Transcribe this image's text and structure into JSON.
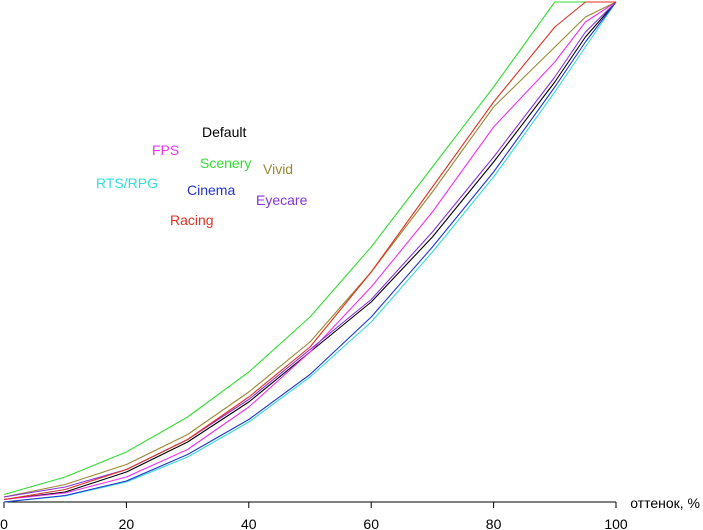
{
  "chart_data": {
    "type": "line",
    "title": "",
    "xlabel": "оттенок, %",
    "ylabel": "",
    "xlim": [
      0,
      100
    ],
    "ylim": [
      0,
      100
    ],
    "x_ticks": [
      0,
      20,
      40,
      60,
      80,
      100
    ],
    "grid": false,
    "legend_placement": "upper-left, floating labels",
    "series": [
      {
        "name": "Default",
        "color": "#000000",
        "x": [
          0,
          10,
          20,
          30,
          40,
          50,
          60,
          70,
          80,
          90,
          95,
          100
        ],
        "y": [
          0.5,
          2,
          6,
          12,
          20,
          30,
          40,
          53,
          68,
          84,
          93,
          100
        ]
      },
      {
        "name": "FPS",
        "color": "#ee33ee",
        "x": [
          0,
          10,
          20,
          30,
          40,
          50,
          60,
          70,
          80,
          90,
          95,
          100
        ],
        "y": [
          0.5,
          1.8,
          5,
          10.5,
          19,
          30,
          43,
          58,
          75,
          88,
          96,
          100
        ]
      },
      {
        "name": "Scenery",
        "color": "#33dd33",
        "x": [
          0,
          10,
          20,
          30,
          40,
          50,
          60,
          70,
          80,
          90,
          95,
          100
        ],
        "y": [
          1.5,
          5,
          10,
          17,
          26,
          37,
          51,
          67,
          83,
          100,
          100,
          100
        ]
      },
      {
        "name": "Vivid",
        "color": "#998833",
        "x": [
          0,
          10,
          20,
          30,
          40,
          50,
          60,
          70,
          80,
          90,
          95,
          100
        ],
        "y": [
          1,
          3.5,
          7.5,
          13.5,
          22,
          32,
          46,
          62,
          79,
          91,
          97,
          100
        ]
      },
      {
        "name": "RTS/RPG",
        "color": "#33dddd",
        "x": [
          0,
          10,
          20,
          30,
          40,
          50,
          60,
          70,
          80,
          90,
          95,
          100
        ],
        "y": [
          0,
          1.2,
          4,
          9,
          16,
          25,
          36,
          50,
          65,
          82,
          91,
          100
        ]
      },
      {
        "name": "Cinema",
        "color": "#2233cc",
        "x": [
          0,
          10,
          20,
          30,
          40,
          50,
          60,
          70,
          80,
          90,
          95,
          100
        ],
        "y": [
          0,
          1.3,
          4.2,
          9.5,
          16.5,
          25.5,
          37,
          51,
          66,
          83,
          92,
          100
        ]
      },
      {
        "name": "Eyecare",
        "color": "#8833dd",
        "x": [
          0,
          10,
          20,
          30,
          40,
          50,
          60,
          70,
          80,
          90,
          95,
          100
        ],
        "y": [
          1,
          3,
          6.5,
          12.5,
          20.5,
          30.5,
          40.5,
          54,
          69,
          85,
          94,
          100
        ]
      },
      {
        "name": "Racing",
        "color": "#dd3322",
        "x": [
          0,
          10,
          20,
          30,
          40,
          50,
          60,
          70,
          80,
          90,
          95,
          100
        ],
        "y": [
          0.5,
          2.5,
          6.5,
          12.5,
          21,
          31,
          46,
          63,
          80,
          95,
          100,
          100
        ]
      }
    ]
  }
}
